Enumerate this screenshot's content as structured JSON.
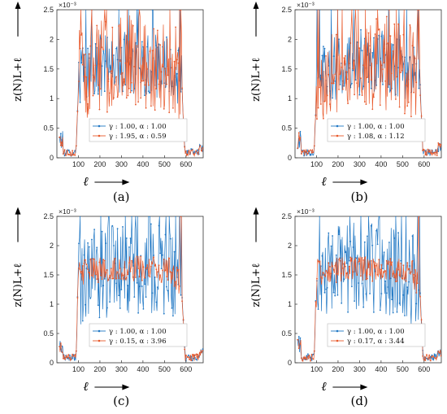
{
  "chart_data": [
    {
      "panel": "(a)",
      "type": "line",
      "xlabel": "ℓ",
      "ylabel": "z(N)L+ℓ",
      "x_ticks": [
        100,
        200,
        300,
        400,
        500,
        600
      ],
      "y_ticks": [
        "0",
        "0.5",
        "1",
        "1.5",
        "2",
        "2.5"
      ],
      "y_multiplier": "×10⁻³",
      "xlim": [
        0,
        680
      ],
      "ylim": [
        0,
        0.0025
      ],
      "grid": false,
      "legend_position": "bottom-right",
      "series": [
        {
          "name": "γ : 1.00, α : 1.00",
          "color": "#1f77c4"
        },
        {
          "name": "γ : 1.95, α : 0.59",
          "color": "#e8582a"
        }
      ]
    },
    {
      "panel": "(b)",
      "type": "line",
      "xlabel": "ℓ",
      "ylabel": "z(N)L+ℓ",
      "x_ticks": [
        100,
        200,
        300,
        400,
        500,
        600
      ],
      "y_ticks": [
        "0",
        "0.5",
        "1",
        "1.5",
        "2",
        "2.5"
      ],
      "y_multiplier": "×10⁻³",
      "xlim": [
        0,
        680
      ],
      "ylim": [
        0,
        0.0025
      ],
      "grid": false,
      "legend_position": "bottom-right",
      "series": [
        {
          "name": "γ : 1.00, α : 1.00",
          "color": "#1f77c4"
        },
        {
          "name": "γ : 1.08, α : 1.12",
          "color": "#e8582a"
        }
      ]
    },
    {
      "panel": "(c)",
      "type": "line",
      "xlabel": "ℓ",
      "ylabel": "z(N)L+ℓ",
      "x_ticks": [
        100,
        200,
        300,
        400,
        500,
        600
      ],
      "y_ticks": [
        "0",
        "0.5",
        "1",
        "1.5",
        "2",
        "2.5"
      ],
      "y_multiplier": "×10⁻³",
      "xlim": [
        0,
        680
      ],
      "ylim": [
        0,
        0.0025
      ],
      "grid": false,
      "legend_position": "bottom-right",
      "series": [
        {
          "name": "γ : 1.00, α : 1.00",
          "color": "#1f77c4"
        },
        {
          "name": "γ : 0.15, α : 3.96",
          "color": "#e8582a"
        }
      ]
    },
    {
      "panel": "(d)",
      "type": "line",
      "xlabel": "ℓ",
      "ylabel": "z(N)L+ℓ",
      "x_ticks": [
        100,
        200,
        300,
        400,
        500,
        600
      ],
      "y_ticks": [
        "0",
        "0.5",
        "1",
        "1.5",
        "2",
        "2.5"
      ],
      "y_multiplier": "×10⁻³",
      "xlim": [
        0,
        680
      ],
      "ylim": [
        0,
        0.0025
      ],
      "grid": false,
      "legend_position": "bottom-right",
      "series": [
        {
          "name": "γ : 1.00, α : 1.00",
          "color": "#1f77c4"
        },
        {
          "name": "γ : 0.17, α : 3.44",
          "color": "#e8582a"
        }
      ]
    }
  ]
}
